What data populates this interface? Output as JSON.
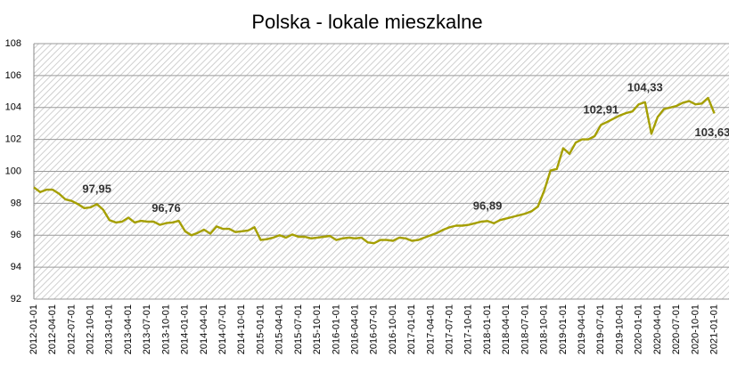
{
  "chart_data": {
    "type": "line",
    "title": "Polska - lokale mieszkalne",
    "categories": [
      "2012-01-01",
      null,
      null,
      "2012-04-01",
      null,
      null,
      "2012-07-01",
      null,
      null,
      "2012-10-01",
      null,
      null,
      "2013-01-01",
      null,
      null,
      "2013-04-01",
      null,
      null,
      "2013-07-01",
      null,
      null,
      "2013-10-01",
      null,
      null,
      "2014-01-01",
      null,
      null,
      "2014-04-01",
      null,
      null,
      "2014-07-01",
      null,
      null,
      "2014-10-01",
      null,
      null,
      "2015-01-01",
      null,
      null,
      "2015-04-01",
      null,
      null,
      "2015-07-01",
      null,
      null,
      "2015-10-01",
      null,
      null,
      "2016-01-01",
      null,
      null,
      "2016-04-01",
      null,
      null,
      "2016-07-01",
      null,
      null,
      "2016-10-01",
      null,
      null,
      "2017-01-01",
      null,
      null,
      "2017-04-01",
      null,
      null,
      "2017-07-01",
      null,
      null,
      "2017-10-01",
      null,
      null,
      "2018-01-01",
      null,
      null,
      "2018-04-01",
      null,
      null,
      "2018-07-01",
      null,
      null,
      "2018-10-01",
      null,
      null,
      "2019-01-01",
      null,
      null,
      "2019-04-01",
      null,
      null,
      "2019-07-01",
      null,
      null,
      "2019-10-01",
      null,
      null,
      "2020-01-01",
      null,
      null,
      "2020-04-01",
      null,
      null,
      "2020-07-01",
      null,
      null,
      "2020-10-01",
      null,
      null,
      "2021-01-01"
    ],
    "series": [
      {
        "name": "lokale mieszkalne",
        "color": "#a59f00",
        "values": [
          99.0,
          98.7,
          98.85,
          98.85,
          98.6,
          98.25,
          98.15,
          97.95,
          97.7,
          97.75,
          97.95,
          97.6,
          96.95,
          96.8,
          96.85,
          97.1,
          96.8,
          96.9,
          96.85,
          96.85,
          96.65,
          96.76,
          96.8,
          96.9,
          96.25,
          96.0,
          96.15,
          96.35,
          96.1,
          96.55,
          96.4,
          96.4,
          96.2,
          96.25,
          96.3,
          96.5,
          95.7,
          95.75,
          95.85,
          96.0,
          95.85,
          96.05,
          95.9,
          95.9,
          95.8,
          95.85,
          95.9,
          95.95,
          95.7,
          95.8,
          95.85,
          95.8,
          95.85,
          95.55,
          95.5,
          95.7,
          95.7,
          95.65,
          95.85,
          95.8,
          95.65,
          95.7,
          95.85,
          96.0,
          96.15,
          96.35,
          96.5,
          96.6,
          96.6,
          96.65,
          96.75,
          96.85,
          96.89,
          96.75,
          96.95,
          97.05,
          97.15,
          97.25,
          97.35,
          97.5,
          97.8,
          98.8,
          100.05,
          100.15,
          101.45,
          101.1,
          101.8,
          102.0,
          102.0,
          102.2,
          102.91,
          103.1,
          103.3,
          103.5,
          103.65,
          103.75,
          104.2,
          104.33,
          102.35,
          103.4,
          103.9,
          104.0,
          104.1,
          104.3,
          104.4,
          104.2,
          104.25,
          104.6,
          103.63
        ],
        "value_labels": [
          null,
          null,
          null,
          null,
          null,
          null,
          null,
          null,
          null,
          null,
          "97,95",
          null,
          null,
          null,
          null,
          null,
          null,
          null,
          null,
          null,
          null,
          "96,76",
          null,
          null,
          null,
          null,
          null,
          null,
          null,
          null,
          null,
          null,
          null,
          null,
          null,
          null,
          null,
          null,
          null,
          null,
          null,
          null,
          null,
          null,
          null,
          null,
          null,
          null,
          null,
          null,
          null,
          null,
          null,
          null,
          null,
          null,
          null,
          null,
          null,
          null,
          null,
          null,
          null,
          null,
          null,
          null,
          null,
          null,
          null,
          null,
          null,
          null,
          "96,89",
          null,
          null,
          null,
          null,
          null,
          null,
          null,
          null,
          null,
          null,
          null,
          null,
          null,
          null,
          null,
          null,
          null,
          "102,91",
          null,
          null,
          null,
          null,
          null,
          null,
          "104,33",
          null,
          null,
          null,
          null,
          null,
          null,
          null,
          null,
          null,
          null,
          "103,63"
        ]
      }
    ],
    "ylim": [
      92,
      108
    ],
    "yticks": [
      92,
      94,
      96,
      98,
      100,
      102,
      104,
      106,
      108
    ],
    "grid": true
  }
}
